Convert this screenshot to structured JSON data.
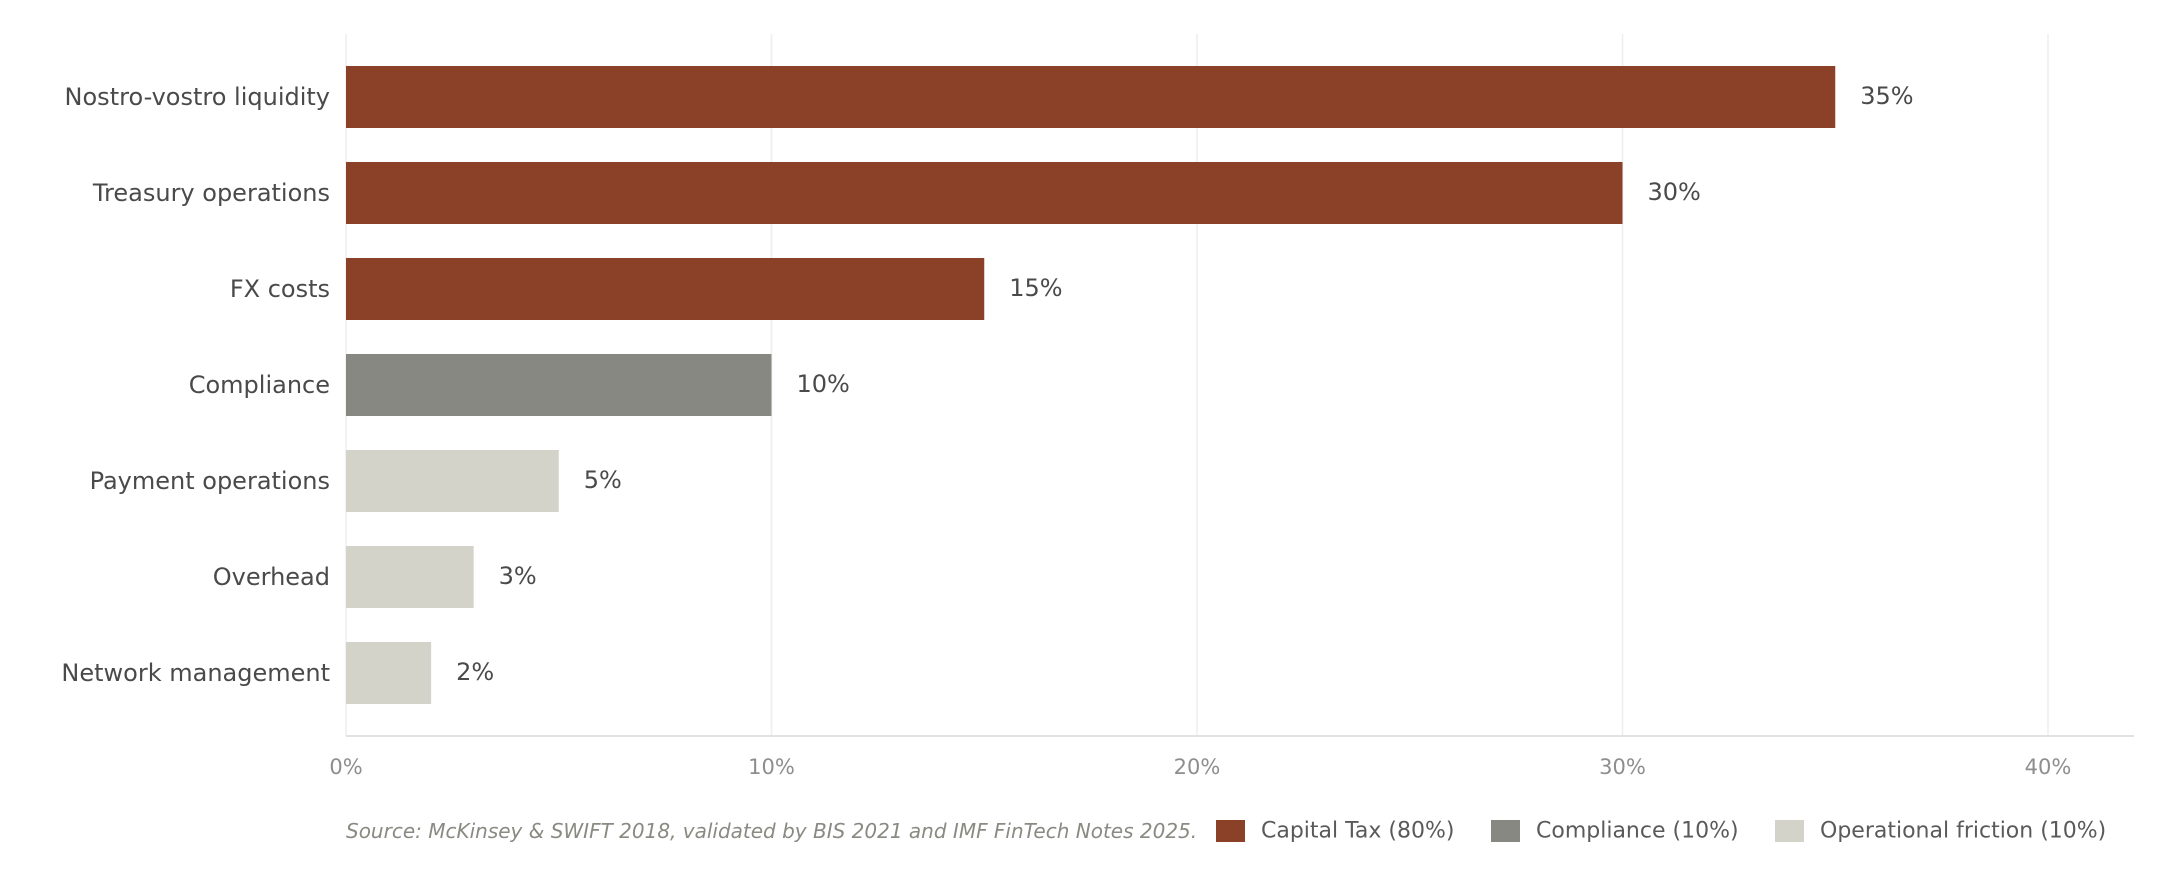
{
  "chart_data": {
    "type": "bar",
    "orientation": "horizontal",
    "categories": [
      "Nostro-vostro liquidity",
      "Treasury operations",
      "FX costs",
      "Compliance",
      "Payment operations",
      "Overhead",
      "Network management"
    ],
    "values": [
      35,
      30,
      15,
      10,
      5,
      3,
      2
    ],
    "value_labels": [
      "35%",
      "30%",
      "15%",
      "10%",
      "5%",
      "3%",
      "2%"
    ],
    "groups": [
      "capital",
      "capital",
      "capital",
      "compliance",
      "operational",
      "operational",
      "operational"
    ],
    "xlim": [
      0,
      42
    ],
    "x_ticks": [
      0,
      10,
      20,
      30,
      40
    ],
    "x_tick_labels": [
      "0%",
      "10%",
      "20%",
      "30%",
      "40%"
    ],
    "grid": "vertical",
    "legend_position": "bottom-right",
    "legend": [
      {
        "key": "capital",
        "label": "Capital Tax (80%)",
        "color": "#8b4128"
      },
      {
        "key": "compliance",
        "label": "Compliance (10%)",
        "color": "#888882"
      },
      {
        "key": "operational",
        "label": "Operational friction (10%)",
        "color": "#d3d3ca"
      }
    ],
    "source": "Source: McKinsey & SWIFT 2018, validated by BIS 2021 and IMF FinTech Notes 2025."
  }
}
